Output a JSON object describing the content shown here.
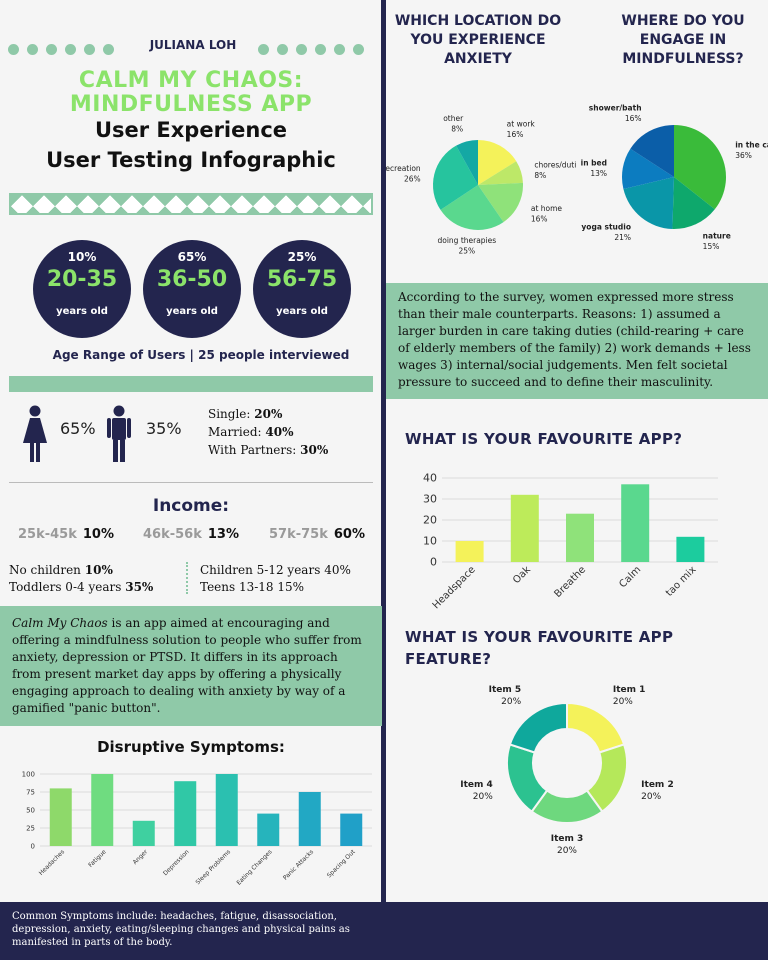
{
  "author": "JULIANA LOH",
  "title": {
    "line1": "CALM MY CHAOS:",
    "line2": "MINDFULNESS APP",
    "line3": "User Experience",
    "line4": "User Testing Infographic"
  },
  "age_groups": [
    {
      "percent": "10%",
      "range": "20-35",
      "unit": "years old"
    },
    {
      "percent": "65%",
      "range": "36-50",
      "unit": "years old"
    },
    {
      "percent": "25%",
      "range": "56-75",
      "unit": "years old"
    }
  ],
  "age_caption": "Age Range of Users | 25 people interviewed",
  "gender": {
    "female_pct": "65%",
    "male_pct": "35%"
  },
  "relationship": [
    {
      "label": "Single:",
      "value": "20%"
    },
    {
      "label": "Married:",
      "value": "40%"
    },
    {
      "label": "With Partners:",
      "value": "30%"
    }
  ],
  "income": {
    "heading": "Income:",
    "brackets": [
      {
        "range": "25k-45k",
        "value": "10%"
      },
      {
        "range": "46k-56k",
        "value": "13%"
      },
      {
        "range": "57k-75k",
        "value": "60%"
      }
    ]
  },
  "children": {
    "no_children": {
      "label": "No children",
      "value": "10%"
    },
    "toddlers": {
      "label": "Toddlers 0-4 years",
      "value": "35%"
    },
    "children_5_12": {
      "label": "Children 5-12 years",
      "value": "40%"
    },
    "teens": {
      "label": "Teens 13-18",
      "value": "15%"
    }
  },
  "description": {
    "app_name": "Calm My Chaos",
    "text": " is an app aimed at encouraging and offering a mindfulness solution to people who suffer from  anxiety, depression or PTSD. It differs in its approach from present market day apps by offering a physically engaging approach to dealing with anxiety by way of a gamified \"panic button\"."
  },
  "symptoms_heading": "Disruptive Symptoms:",
  "footer_text": "Common Symptoms include: headaches, fatigue, disassociation, depression, anxiety, eating/sleeping changes and physical pains as manifested in parts of the body.",
  "q_location": "WHICH LOCATION DO YOU EXPERIENCE ANXIETY",
  "q_mindful": "WHERE DO YOU ENGAGE IN MINDFULNESS?",
  "survey_text": "According to the survey, women expressed more stress than their male counterparts. Reasons: 1) assumed a larger burden in care taking duties (child-rearing + care of elderly members of the family) 2) work demands + less wages 3) internal/social judgements. Men felt societal pressure to succeed and to define their masculinity.",
  "q_app": "WHAT IS YOUR FAVOURITE APP?",
  "q_feature": "WHAT IS YOUR FAVOURITE APP FEATURE?",
  "colors": {
    "navy": "#23254e",
    "mint": "#8fc9a8",
    "green": "#8be36a"
  },
  "chart_data": [
    {
      "type": "bar",
      "title": "Disruptive Symptoms:",
      "categories": [
        "Headaches",
        "Fatigue",
        "Anger",
        "Depression",
        "Sleep Problems",
        "Eating Changes",
        "Panic Attacks",
        "Spacing Out"
      ],
      "values": [
        80,
        100,
        35,
        90,
        100,
        45,
        75,
        45
      ],
      "colors": [
        "#8ed96a",
        "#6fdc80",
        "#3fd0a0",
        "#30c8a6",
        "#2bc0b0",
        "#26b4bc",
        "#22a8c4",
        "#20a0c8"
      ],
      "yticks": [
        0,
        25,
        50,
        75,
        100
      ],
      "ylim": [
        0,
        100
      ]
    },
    {
      "type": "pie",
      "title": "WHICH LOCATION DO YOU EXPERIENCE ANXIETY",
      "slices": [
        {
          "label": "at work",
          "pct": "16%",
          "value": 16,
          "color": "#f4f25a"
        },
        {
          "label": "chores/duties",
          "pct": "8%",
          "value": 8,
          "color": "#bde868"
        },
        {
          "label": "at home",
          "pct": "16%",
          "value": 16,
          "color": "#8fe27a"
        },
        {
          "label": "doing therapies",
          "pct": "25%",
          "value": 25,
          "color": "#5ad88e"
        },
        {
          "label": "recreation",
          "pct": "26%",
          "value": 26,
          "color": "#26c49e"
        },
        {
          "label": "other",
          "pct": "8%",
          "value": 8,
          "color": "#14a8a4"
        }
      ]
    },
    {
      "type": "pie",
      "title": "WHERE DO YOU ENGAGE IN MINDFULNESS?",
      "slices": [
        {
          "label": "in the car",
          "pct": "36%",
          "value": 36,
          "color": "#3abb3a"
        },
        {
          "label": "nature",
          "pct": "15%",
          "value": 15,
          "color": "#0ea86c"
        },
        {
          "label": "yoga studio",
          "pct": "21%",
          "value": 21,
          "color": "#0a96a8"
        },
        {
          "label": "in bed",
          "pct": "13%",
          "value": 13,
          "color": "#0c7cc0"
        },
        {
          "label": "shower/bath",
          "pct": "16%",
          "value": 16,
          "color": "#0b5ea8"
        }
      ]
    },
    {
      "type": "bar",
      "title": "WHAT IS YOUR FAVOURITE APP?",
      "categories": [
        "Headspace",
        "Oak",
        "Breathe",
        "Calm",
        "tao mix"
      ],
      "values": [
        10,
        32,
        23,
        37,
        12
      ],
      "colors": [
        "#f4f25a",
        "#bdeb5a",
        "#8fe27a",
        "#5ad88e",
        "#1ccc9e"
      ],
      "yticks": [
        0,
        10,
        20,
        30,
        40
      ],
      "ylim": [
        0,
        40
      ]
    },
    {
      "type": "pie",
      "donut": true,
      "title": "WHAT IS YOUR FAVOURITE APP FEATURE?",
      "slices": [
        {
          "label": "Item 1",
          "pct": "20%",
          "value": 20,
          "color": "#f4f25a"
        },
        {
          "label": "Item 2",
          "pct": "20%",
          "value": 20,
          "color": "#b5e85a"
        },
        {
          "label": "Item 3",
          "pct": "20%",
          "value": 20,
          "color": "#6ed87e"
        },
        {
          "label": "Item 4",
          "pct": "20%",
          "value": 20,
          "color": "#2cc290"
        },
        {
          "label": "Item 5",
          "pct": "20%",
          "value": 20,
          "color": "#0fa89c"
        }
      ]
    }
  ]
}
